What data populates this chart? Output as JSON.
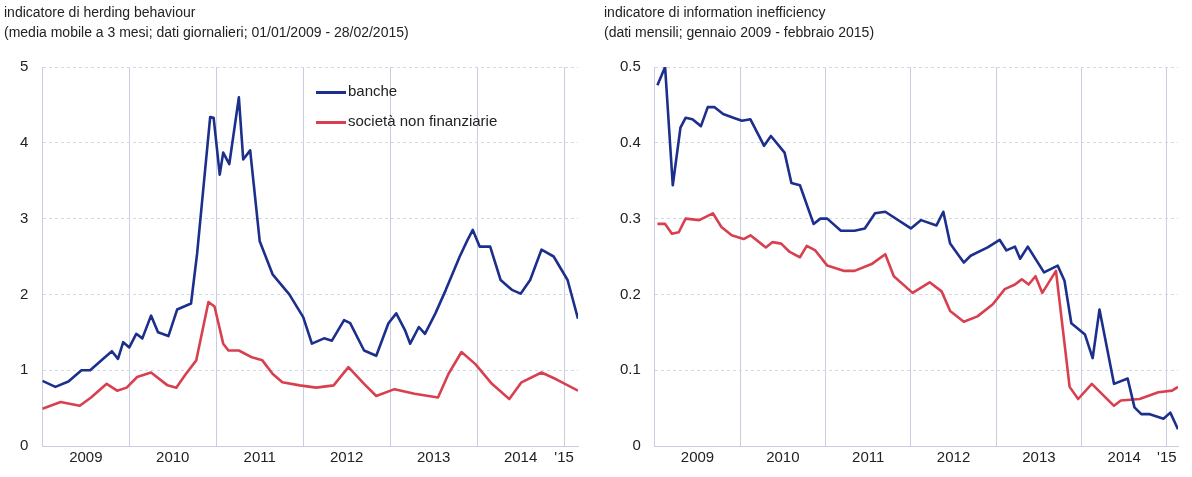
{
  "chart_data": [
    {
      "type": "line",
      "title": "indicatore di herding behaviour",
      "subtitle": "(media mobile a 3 mesi; dati giornalieri; 01/01/2009 - 28/02/2015)",
      "xlim": [
        2009,
        2015.16
      ],
      "xticks": [
        {
          "value": 2009.5,
          "label": "2009"
        },
        {
          "value": 2010,
          "label": null
        },
        {
          "value": 2010.5,
          "label": "2010"
        },
        {
          "value": 2011,
          "label": null
        },
        {
          "value": 2011.5,
          "label": "2011"
        },
        {
          "value": 2012,
          "label": null
        },
        {
          "value": 2012.5,
          "label": "2012"
        },
        {
          "value": 2013,
          "label": null
        },
        {
          "value": 2013.5,
          "label": "2013"
        },
        {
          "value": 2014,
          "label": null
        },
        {
          "value": 2014.5,
          "label": "2014"
        },
        {
          "value": 2015,
          "label": "'15"
        }
      ],
      "ylim": [
        0,
        5
      ],
      "yticks": [
        0,
        1,
        2,
        3,
        4,
        5
      ],
      "grid": true,
      "legend": "top right",
      "marker": "none",
      "line_style": "solid",
      "series": [
        {
          "name": "banche",
          "color": "#1c2f8c",
          "x": [
            2009.0,
            2009.15,
            2009.3,
            2009.45,
            2009.55,
            2009.7,
            2009.8,
            2009.87,
            2009.93,
            2010.0,
            2010.08,
            2010.15,
            2010.25,
            2010.33,
            2010.45,
            2010.55,
            2010.71,
            2010.78,
            2010.93,
            2010.97,
            2011.04,
            2011.08,
            2011.15,
            2011.26,
            2011.31,
            2011.39,
            2011.5,
            2011.65,
            2011.84,
            2012.0,
            2012.1,
            2012.24,
            2012.33,
            2012.47,
            2012.54,
            2012.7,
            2012.84,
            2012.98,
            2013.07,
            2013.17,
            2013.23,
            2013.33,
            2013.4,
            2013.52,
            2013.64,
            2013.8,
            2013.89,
            2013.95,
            2014.03,
            2014.15,
            2014.27,
            2014.4,
            2014.5,
            2014.61,
            2014.74,
            2014.88,
            2015.04,
            2015.16
          ],
          "values": [
            0.86,
            0.78,
            0.85,
            1.0,
            1.0,
            1.15,
            1.25,
            1.15,
            1.37,
            1.3,
            1.48,
            1.42,
            1.72,
            1.5,
            1.45,
            1.8,
            1.88,
            2.54,
            4.34,
            4.33,
            3.58,
            3.87,
            3.72,
            4.6,
            3.78,
            3.9,
            2.7,
            2.26,
            2.0,
            1.7,
            1.35,
            1.42,
            1.39,
            1.66,
            1.62,
            1.26,
            1.19,
            1.62,
            1.75,
            1.53,
            1.35,
            1.57,
            1.48,
            1.75,
            2.06,
            2.5,
            2.72,
            2.85,
            2.63,
            2.63,
            2.19,
            2.06,
            2.01,
            2.19,
            2.59,
            2.5,
            2.19,
            1.68
          ]
        },
        {
          "name": "società non finanziarie",
          "color": "#d8404f",
          "x": [
            2009.0,
            2009.21,
            2009.43,
            2009.56,
            2009.74,
            2009.86,
            2009.97,
            2010.09,
            2010.25,
            2010.44,
            2010.54,
            2010.65,
            2010.77,
            2010.91,
            2010.98,
            2011.08,
            2011.14,
            2011.26,
            2011.41,
            2011.53,
            2011.65,
            2011.76,
            2011.96,
            2012.15,
            2012.35,
            2012.52,
            2012.7,
            2012.84,
            2013.05,
            2013.28,
            2013.55,
            2013.67,
            2013.82,
            2013.98,
            2014.17,
            2014.37,
            2014.51,
            2014.74,
            2014.91,
            2015.16
          ],
          "values": [
            0.49,
            0.58,
            0.53,
            0.64,
            0.82,
            0.73,
            0.77,
            0.91,
            0.97,
            0.8,
            0.77,
            0.95,
            1.13,
            1.9,
            1.84,
            1.35,
            1.26,
            1.26,
            1.17,
            1.13,
            0.95,
            0.84,
            0.8,
            0.77,
            0.8,
            1.04,
            0.82,
            0.66,
            0.75,
            0.69,
            0.64,
            0.95,
            1.24,
            1.08,
            0.82,
            0.62,
            0.84,
            0.97,
            0.88,
            0.73
          ]
        }
      ]
    },
    {
      "type": "line",
      "title": "indicatore di information inefficiency",
      "subtitle": "(dati mensili; gennaio 2009 - febbraio 2015)",
      "xlim": [
        2009,
        2015.13
      ],
      "xticks": [
        {
          "value": 2009.5,
          "label": "2009"
        },
        {
          "value": 2010,
          "label": null
        },
        {
          "value": 2010.5,
          "label": "2010"
        },
        {
          "value": 2011,
          "label": null
        },
        {
          "value": 2011.5,
          "label": "2011"
        },
        {
          "value": 2012,
          "label": null
        },
        {
          "value": 2012.5,
          "label": "2012"
        },
        {
          "value": 2013,
          "label": null
        },
        {
          "value": 2013.5,
          "label": "2013"
        },
        {
          "value": 2014,
          "label": null
        },
        {
          "value": 2014.5,
          "label": "2014"
        },
        {
          "value": 2015,
          "label": "'15"
        }
      ],
      "ylim": [
        0,
        0.5
      ],
      "yticks": [
        0,
        0.1,
        0.2,
        0.3,
        0.4,
        0.5
      ],
      "grid": true,
      "marker": "none",
      "line_style": "solid",
      "series": [
        {
          "color": "#1c2f8c",
          "x": [
            2009.03,
            2009.12,
            2009.21,
            2009.3,
            2009.36,
            2009.44,
            2009.54,
            2009.62,
            2009.7,
            2009.8,
            2009.92,
            2010.02,
            2010.12,
            2010.28,
            2010.36,
            2010.52,
            2010.6,
            2010.7,
            2010.86,
            2010.94,
            2011.02,
            2011.18,
            2011.34,
            2011.46,
            2011.58,
            2011.7,
            2012.0,
            2012.12,
            2012.3,
            2012.38,
            2012.46,
            2012.62,
            2012.7,
            2012.9,
            2013.04,
            2013.12,
            2013.22,
            2013.28,
            2013.37,
            2013.56,
            2013.72,
            2013.8,
            2013.88,
            2014.04,
            2014.13,
            2014.21,
            2014.38,
            2014.54,
            2014.62,
            2014.7,
            2014.8,
            2014.96,
            2015.04,
            2015.13
          ],
          "values": [
            0.476,
            0.5,
            0.344,
            0.42,
            0.433,
            0.431,
            0.422,
            0.447,
            0.447,
            0.438,
            0.433,
            0.429,
            0.431,
            0.396,
            0.409,
            0.387,
            0.347,
            0.344,
            0.293,
            0.3,
            0.3,
            0.284,
            0.284,
            0.287,
            0.307,
            0.309,
            0.287,
            0.298,
            0.291,
            0.309,
            0.267,
            0.242,
            0.251,
            0.262,
            0.272,
            0.258,
            0.263,
            0.247,
            0.263,
            0.229,
            0.238,
            0.218,
            0.162,
            0.147,
            0.116,
            0.18,
            0.082,
            0.089,
            0.051,
            0.042,
            0.042,
            0.036,
            0.044,
            0.022
          ]
        },
        {
          "color": "#d8404f",
          "x": [
            2009.03,
            2009.12,
            2009.2,
            2009.28,
            2009.36,
            2009.52,
            2009.68,
            2009.78,
            2009.9,
            2010.04,
            2010.12,
            2010.3,
            2010.38,
            2010.48,
            2010.58,
            2010.7,
            2010.78,
            2010.88,
            2011.02,
            2011.22,
            2011.34,
            2011.54,
            2011.7,
            2011.8,
            2012.02,
            2012.22,
            2012.36,
            2012.46,
            2012.62,
            2012.78,
            2012.96,
            2013.1,
            2013.22,
            2013.3,
            2013.38,
            2013.46,
            2013.54,
            2013.7,
            2013.86,
            2013.96,
            2014.12,
            2014.38,
            2014.46,
            2014.68,
            2014.9,
            2015.06,
            2015.13
          ],
          "values": [
            0.293,
            0.293,
            0.28,
            0.282,
            0.3,
            0.298,
            0.307,
            0.289,
            0.278,
            0.273,
            0.278,
            0.262,
            0.269,
            0.267,
            0.256,
            0.249,
            0.264,
            0.258,
            0.238,
            0.231,
            0.231,
            0.24,
            0.253,
            0.224,
            0.202,
            0.216,
            0.204,
            0.178,
            0.164,
            0.171,
            0.187,
            0.207,
            0.213,
            0.22,
            0.213,
            0.224,
            0.202,
            0.231,
            0.078,
            0.062,
            0.082,
            0.053,
            0.06,
            0.062,
            0.071,
            0.073,
            0.078
          ]
        }
      ]
    }
  ]
}
